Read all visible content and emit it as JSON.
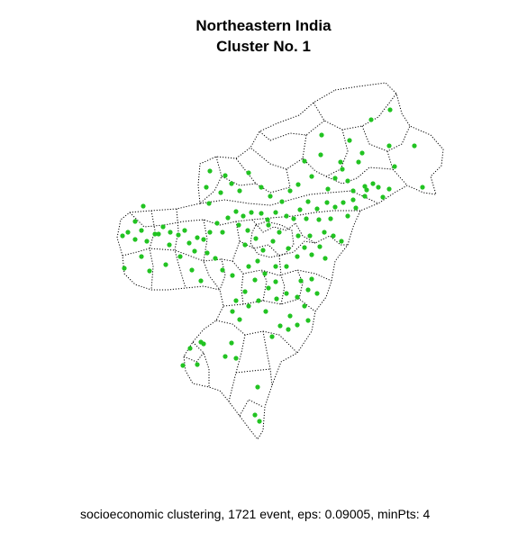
{
  "title_line1": "Northeastern India",
  "title_line2": "Cluster No. 1",
  "footer": "socioeconomic clustering, 1721 event, eps: 0.09005, minPts: 4",
  "colors": {
    "point": "#22c322",
    "boundary": "#000000",
    "background": "#ffffff"
  }
}
